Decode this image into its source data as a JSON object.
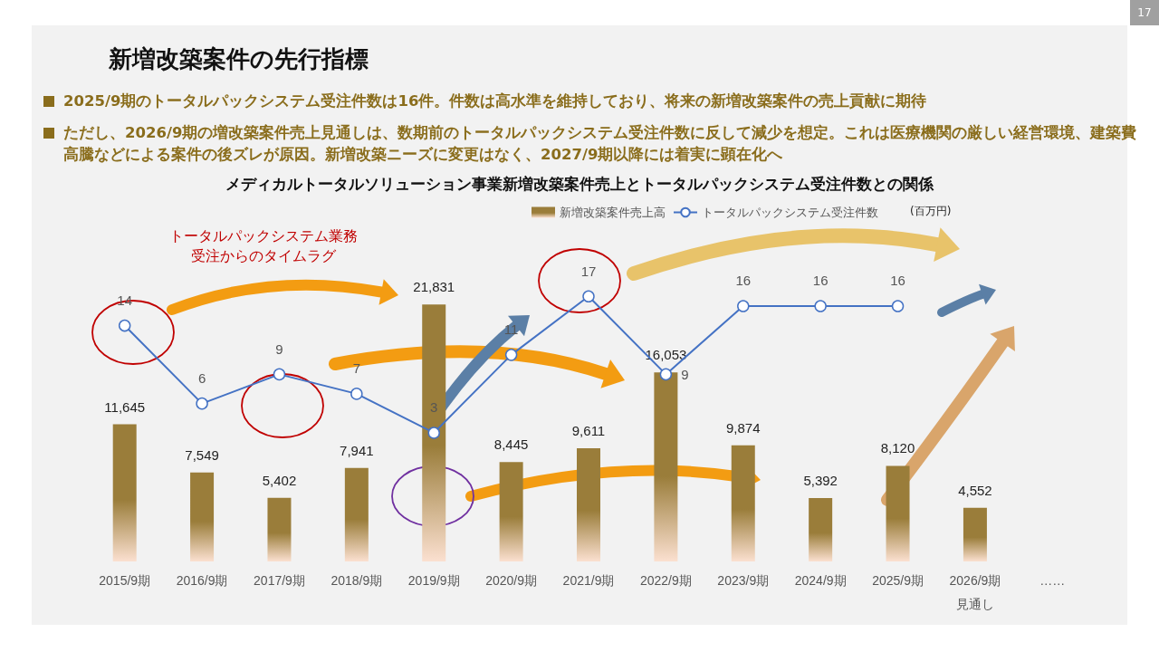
{
  "chart_data": {
    "type": "bar",
    "title": "新増改築案件の先行指標",
    "subtitle": "メディカルトータルソリューション事業新増改築案件売上とトータルパックシステム受注件数との関係",
    "annotations": [
      "2025/9期のトータルパックシステム受注件数は16件。件数は高水準を維持しており、将来の新増改築案件の売上貢献に期待",
      "ただし、2026/9期の増改築案件売上見通しは、数期前のトータルパックシステム受注件数に反して減少を想定。これは医療機関の厳しい経営環境、建築費高騰などによる案件の後ズレが原因。新増改築ニーズに変更はなく、2027/9期以降には着実に顕在化へ",
      "トータルパックシステム業務受注からのタイムラグ",
      "(百万円)",
      "17"
    ],
    "categories": [
      "2015/9期",
      "2016/9期",
      "2017/9期",
      "2018/9期",
      "2019/9期",
      "2020/9期",
      "2021/9期",
      "2022/9期",
      "2023/9期",
      "2024/9期",
      "2025/9期",
      "2026/9期見通し",
      "……"
    ],
    "series": [
      {
        "name": "新増改築案件売上高",
        "color": "#9a7d3a",
        "values": [
          11645,
          7549,
          5402,
          7941,
          21831,
          8445,
          9611,
          16053,
          9874,
          5392,
          8120,
          4552,
          null
        ],
        "value_labels": [
          "11,645",
          "7,549",
          "5,402",
          "7,941",
          "21,831",
          "8,445",
          "9,611",
          "16,053",
          "9,874",
          "5,392",
          "8,120",
          "4,552",
          null
        ]
      },
      {
        "name": "トータルパックシステム受注件数",
        "type": "line",
        "axis": "y2",
        "color": "#4472c4",
        "marker": "circle",
        "values": [
          14,
          6,
          9,
          7,
          3,
          11,
          17,
          9,
          16,
          16,
          16,
          null,
          null
        ]
      }
    ],
    "data_labels": true,
    "grid": false,
    "legend": "top right",
    "tick_labels": "x"
  }
}
